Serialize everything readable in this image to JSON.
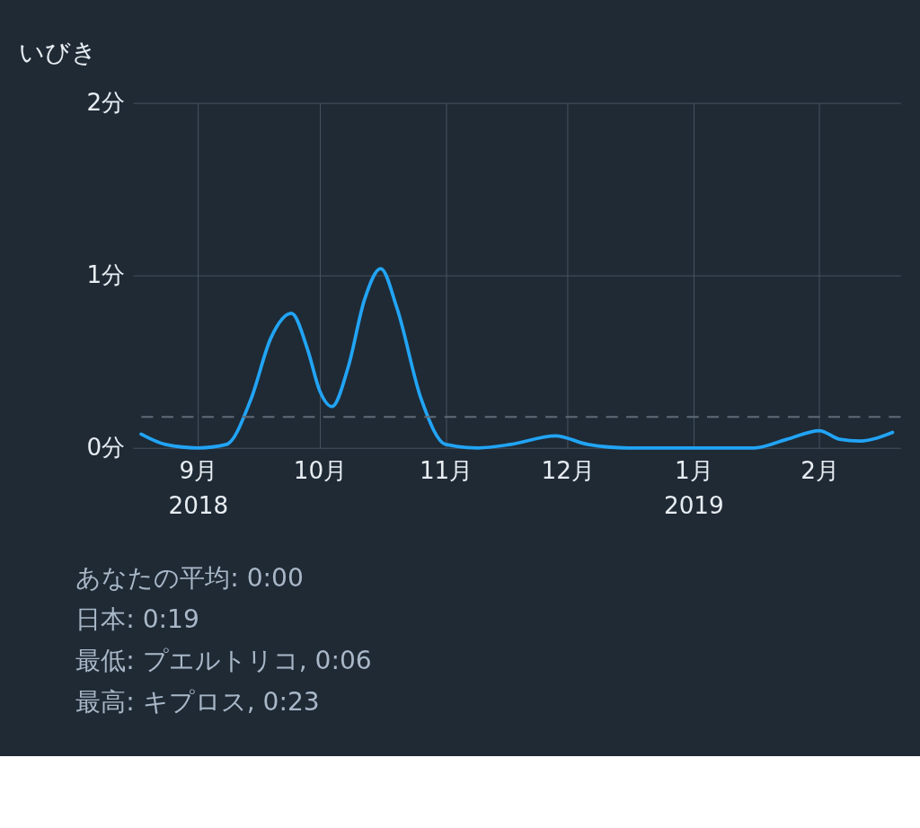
{
  "chart_data": {
    "type": "line",
    "title": "いびき",
    "x": [
      "2018-08-18",
      "2018-08-24",
      "2018-09-01",
      "2018-09-08",
      "2018-09-14",
      "2018-09-19",
      "2018-09-24",
      "2018-09-28",
      "2018-10-01",
      "2018-10-04",
      "2018-10-08",
      "2018-10-12",
      "2018-10-16",
      "2018-10-20",
      "2018-10-26",
      "2018-11-01",
      "2018-11-09",
      "2018-11-17",
      "2018-11-28",
      "2018-12-06",
      "2018-12-16",
      "2019-01-01",
      "2019-01-16",
      "2019-01-24",
      "2019-02-01",
      "2019-02-06",
      "2019-02-11",
      "2019-02-19"
    ],
    "series": [
      {
        "color": "#22a4f5",
        "values": [
          0.08,
          0.02,
          0,
          0.02,
          0.28,
          0.64,
          0.78,
          0.57,
          0.33,
          0.24,
          0.47,
          0.86,
          1.04,
          0.81,
          0.28,
          0.02,
          0,
          0.02,
          0.07,
          0.02,
          0,
          0,
          0,
          0.05,
          0.1,
          0.05,
          0.04,
          0.09
        ]
      }
    ],
    "xlim": [
      "2018-08-16",
      "2019-02-21"
    ],
    "xticks": [
      {
        "value": "2018-09-01",
        "label": "9月\n2018"
      },
      {
        "value": "2018-10-01",
        "label": "10月"
      },
      {
        "value": "2018-11-01",
        "label": "11月"
      },
      {
        "value": "2018-12-01",
        "label": "12月"
      },
      {
        "value": "2019-01-01",
        "label": "1月\n2019"
      },
      {
        "value": "2019-02-01",
        "label": "2月"
      }
    ],
    "ylim": [
      0,
      2
    ],
    "yticks": [
      {
        "value": 0,
        "label": "0分"
      },
      {
        "value": 1,
        "label": "1分"
      },
      {
        "value": 2,
        "label": "2分"
      }
    ],
    "ref_lines": [
      {
        "axis": "y",
        "value": 0.18,
        "label": null,
        "color": "#5f6b77",
        "line_style": "dashed"
      }
    ],
    "grid": true,
    "marker": "none",
    "line_style": "solid",
    "annotations": [
      "あなたの平均: 0:00",
      "日本: 0:19",
      "最低: プエルトリコ, 0:06",
      "最高: キプロス, 0:23"
    ]
  }
}
